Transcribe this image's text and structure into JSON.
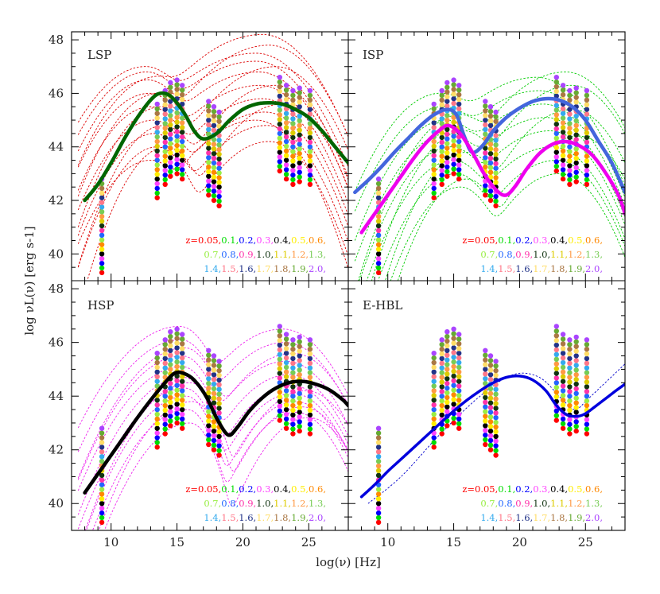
{
  "figure": {
    "xlabel": "log(ν) [Hz]",
    "ylabel": "log νL(ν) [erg s-1]"
  },
  "legend": {
    "rows": [
      [
        "z=0.05,",
        "0.1,",
        "0.2,",
        "0.3,",
        "0.4,",
        "0.5,",
        "0.6,"
      ],
      [
        "0.7,",
        "0.8,",
        "0.9,",
        "1.0,",
        "1.1,",
        "1.2,",
        "1.3,"
      ],
      [
        "1.4,",
        "1.5,",
        "1.6,",
        "1.7,",
        "1.8,",
        "1.9,",
        "2.0,"
      ]
    ],
    "colors": [
      [
        "#ff0000",
        "#00dd00",
        "#0000ff",
        "#ff44ff",
        "#000000",
        "#ffee00",
        "#ff8800"
      ],
      [
        "#99ee44",
        "#2266ff",
        "#ff33aa",
        "#113311",
        "#ddcc00",
        "#ff9944",
        "#77cc55"
      ],
      [
        "#33aaee",
        "#ff7788",
        "#223388",
        "#ffdd66",
        "#aa7744",
        "#66aa33",
        "#aa44ff"
      ]
    ]
  },
  "chart_data": {
    "type": "line",
    "xlim": [
      7,
      28
    ],
    "ylim": [
      39,
      48.3
    ],
    "xticks": [
      10,
      15,
      20,
      25
    ],
    "yticks": [
      40,
      42,
      44,
      46,
      48
    ],
    "sensitivity_bands": {
      "redshift_colors": [
        "#ff0000",
        "#00dd00",
        "#0000ff",
        "#ff44ff",
        "#000000",
        "#ffee00",
        "#ff8800",
        "#99ee44",
        "#2266ff",
        "#ff33aa",
        "#113311",
        "#ddcc00",
        "#ff9944",
        "#77cc55",
        "#33aaee",
        "#ff7788",
        "#223388",
        "#ffdd66",
        "#aa7744",
        "#66aa33",
        "#aa44ff"
      ],
      "bands": [
        {
          "x": 9.3,
          "y_start": 39.3,
          "y_step": 0.175
        },
        {
          "x": 13.5,
          "y_start": 42.1,
          "y_step": 0.175
        },
        {
          "x": 14.1,
          "y_start": 42.6,
          "y_step": 0.175
        },
        {
          "x": 14.5,
          "y_start": 42.9,
          "y_step": 0.175
        },
        {
          "x": 15.0,
          "y_start": 43.0,
          "y_step": 0.175
        },
        {
          "x": 15.4,
          "y_start": 42.8,
          "y_step": 0.175
        },
        {
          "x": 17.4,
          "y_start": 42.2,
          "y_step": 0.175
        },
        {
          "x": 17.8,
          "y_start": 42.0,
          "y_step": 0.175
        },
        {
          "x": 18.2,
          "y_start": 41.8,
          "y_step": 0.175
        },
        {
          "x": 22.8,
          "y_start": 43.1,
          "y_step": 0.175
        },
        {
          "x": 23.3,
          "y_start": 42.8,
          "y_step": 0.175
        },
        {
          "x": 23.8,
          "y_start": 42.6,
          "y_step": 0.175
        },
        {
          "x": 24.3,
          "y_start": 42.7,
          "y_step": 0.175
        },
        {
          "x": 25.1,
          "y_start": 42.6,
          "y_step": 0.175
        }
      ]
    },
    "panels": [
      {
        "label": "LSP",
        "thin_color": "#dd0000",
        "thick": {
          "color": "#006600",
          "width": 4.5,
          "x": [
            8,
            9,
            10,
            11,
            12,
            13,
            13.7,
            14.5,
            15.5,
            16.3,
            17,
            18,
            19,
            20,
            21,
            22,
            23,
            24,
            25,
            26,
            27,
            28
          ],
          "y": [
            42.0,
            42.6,
            43.4,
            44.3,
            45.1,
            45.75,
            46.0,
            45.9,
            45.3,
            44.6,
            44.3,
            44.5,
            45.0,
            45.4,
            45.6,
            45.65,
            45.6,
            45.4,
            45.1,
            44.6,
            44.0,
            43.4
          ]
        },
        "thin": [
          {
            "a": [
              44.0,
              13.5,
              2.0,
              1.55
            ],
            "b": [
              44.2,
              22.0,
              2.6,
              2.05
            ]
          },
          {
            "a": [
              44.5,
              13.3,
              2.1,
              1.6
            ],
            "b": [
              44.8,
              21.8,
              2.8,
              2.1
            ]
          },
          {
            "a": [
              45.0,
              13.2,
              2.2,
              1.65
            ],
            "b": [
              45.3,
              21.7,
              3.0,
              2.15
            ]
          },
          {
            "a": [
              45.5,
              13.0,
              2.2,
              1.7
            ],
            "b": [
              45.8,
              21.5,
              3.2,
              2.2
            ]
          },
          {
            "a": [
              46.0,
              12.9,
              2.3,
              1.75
            ],
            "b": [
              46.3,
              21.3,
              3.4,
              2.25
            ]
          },
          {
            "a": [
              46.5,
              12.8,
              2.3,
              1.8
            ],
            "b": [
              46.8,
              21.2,
              3.5,
              2.3
            ]
          },
          {
            "a": [
              46.8,
              12.7,
              2.4,
              1.85
            ],
            "b": [
              47.2,
              21.0,
              3.6,
              2.35
            ]
          },
          {
            "a": [
              47.0,
              12.6,
              2.5,
              1.9
            ],
            "b": [
              47.5,
              21.0,
              3.7,
              2.4
            ]
          },
          {
            "a": [
              44.8,
              14.0,
              2.0,
              1.6
            ],
            "b": [
              46.3,
              22.5,
              2.8,
              2.1
            ]
          },
          {
            "a": [
              45.5,
              13.8,
              2.1,
              1.65
            ],
            "b": [
              47.0,
              22.5,
              3.0,
              2.2
            ]
          },
          {
            "a": [
              44.0,
              14.2,
              1.9,
              1.5
            ],
            "b": [
              45.6,
              23.0,
              2.6,
              2.0
            ]
          },
          {
            "a": [
              46.0,
              13.6,
              2.2,
              1.7
            ],
            "b": [
              47.8,
              22.0,
              3.2,
              2.3
            ]
          },
          {
            "a": [
              43.5,
              13.0,
              2.2,
              1.6
            ],
            "b": [
              45.0,
              21.0,
              3.0,
              2.1
            ]
          },
          {
            "a": [
              46.6,
              13.4,
              2.3,
              1.8
            ],
            "b": [
              48.2,
              21.5,
              3.5,
              2.35
            ]
          }
        ]
      },
      {
        "label": "ISP",
        "thin_color": "#00cc00",
        "thick": [
          {
            "color": "#4466dd",
            "width": 4.5,
            "x": [
              7.5,
              8.5,
              9.5,
              10.5,
              11.5,
              12.5,
              13.5,
              14.5,
              15.2,
              15.8,
              16.4,
              17.2,
              18,
              19,
              20,
              21,
              22,
              23,
              24,
              25,
              26,
              27,
              28
            ],
            "y": [
              42.3,
              42.75,
              43.25,
              43.8,
              44.3,
              44.8,
              45.2,
              45.4,
              45.2,
              44.4,
              43.8,
              44.05,
              44.6,
              45.1,
              45.45,
              45.7,
              45.8,
              45.75,
              45.5,
              45.0,
              44.2,
              43.4,
              42.3
            ]
          },
          {
            "color": "#ee00ee",
            "width": 4.5,
            "x": [
              8,
              9,
              10,
              11,
              12,
              13,
              14,
              14.6,
              15.4,
              16.3,
              17.3,
              18.3,
              19,
              19.7,
              20.5,
              21.5,
              22.5,
              23.5,
              24.5,
              25.5,
              26.5,
              27.5,
              28
            ],
            "y": [
              40.8,
              41.5,
              42.2,
              42.9,
              43.6,
              44.2,
              44.65,
              44.8,
              44.55,
              43.9,
              43.0,
              42.35,
              42.2,
              42.55,
              43.15,
              43.75,
              44.1,
              44.2,
              44.05,
              43.7,
              43.05,
              42.2,
              41.5
            ]
          }
        ],
        "thin": [
          {
            "a": [
              42.5,
              15.5,
              2.0,
              1.6
            ],
            "b": [
              43.0,
              23.0,
              2.5,
              2.0
            ]
          },
          {
            "a": [
              43.0,
              15.2,
              2.1,
              1.65
            ],
            "b": [
              43.5,
              22.8,
              2.7,
              2.05
            ]
          },
          {
            "a": [
              43.5,
              15.0,
              2.2,
              1.7
            ],
            "b": [
              44.0,
              22.5,
              2.9,
              2.1
            ]
          },
          {
            "a": [
              44.0,
              14.8,
              2.2,
              1.75
            ],
            "b": [
              44.6,
              22.3,
              3.0,
              2.15
            ]
          },
          {
            "a": [
              44.5,
              14.6,
              2.3,
              1.8
            ],
            "b": [
              45.1,
              22.0,
              3.1,
              2.2
            ]
          },
          {
            "a": [
              45.0,
              14.4,
              2.3,
              1.85
            ],
            "b": [
              45.6,
              21.8,
              3.2,
              2.25
            ]
          },
          {
            "a": [
              45.5,
              14.2,
              2.4,
              1.9
            ],
            "b": [
              46.1,
              21.5,
              3.3,
              2.3
            ]
          },
          {
            "a": [
              46.0,
              14.0,
              2.4,
              1.95
            ],
            "b": [
              46.6,
              21.3,
              3.4,
              2.35
            ]
          },
          {
            "a": [
              43.8,
              16.0,
              2.0,
              1.6
            ],
            "b": [
              45.4,
              24.0,
              2.6,
              2.0
            ]
          },
          {
            "a": [
              44.6,
              15.8,
              2.1,
              1.65
            ],
            "b": [
              46.3,
              24.0,
              2.8,
              2.1
            ]
          },
          {
            "a": [
              45.2,
              15.5,
              2.2,
              1.7
            ],
            "b": [
              46.8,
              23.5,
              3.0,
              2.2
            ]
          },
          {
            "a": [
              42.8,
              16.0,
              1.9,
              1.5
            ],
            "b": [
              44.4,
              24.5,
              2.5,
              1.95
            ]
          }
        ]
      },
      {
        "label": "HSP",
        "thin_color": "#ee22ee",
        "thick": {
          "color": "#000000",
          "width": 4.5,
          "x": [
            8,
            9,
            10,
            11,
            12,
            13,
            14,
            14.8,
            15.5,
            16.3,
            17.2,
            18.1,
            18.9,
            19.6,
            20.5,
            21.5,
            22.5,
            23.5,
            24.5,
            25.5,
            26.5,
            27.5,
            28
          ],
          "y": [
            40.4,
            41.1,
            41.8,
            42.5,
            43.2,
            43.85,
            44.45,
            44.85,
            44.85,
            44.6,
            44.0,
            43.1,
            42.55,
            42.85,
            43.45,
            43.95,
            44.3,
            44.5,
            44.55,
            44.45,
            44.25,
            43.9,
            43.65
          ]
        },
        "thin": [
          {
            "a": [
              43.5,
              15.8,
              2.4,
              1.2
            ],
            "b": [
              43.4,
              24.0,
              2.2,
              1.9
            ]
          },
          {
            "a": [
              44.0,
              15.7,
              2.4,
              1.25
            ],
            "b": [
              43.8,
              24.0,
              2.3,
              1.95
            ]
          },
          {
            "a": [
              44.3,
              15.6,
              2.5,
              1.3
            ],
            "b": [
              44.1,
              23.8,
              2.4,
              2.0
            ]
          },
          {
            "a": [
              44.7,
              15.5,
              2.5,
              1.35
            ],
            "b": [
              44.4,
              23.7,
              2.5,
              2.05
            ]
          },
          {
            "a": [
              45.1,
              15.4,
              2.6,
              1.4
            ],
            "b": [
              44.8,
              23.5,
              2.6,
              2.1
            ]
          },
          {
            "a": [
              45.5,
              15.4,
              2.6,
              1.45
            ],
            "b": [
              45.3,
              23.3,
              2.7,
              2.15
            ]
          },
          {
            "a": [
              46.1,
              15.3,
              2.7,
              1.5
            ],
            "b": [
              46.0,
              23.2,
              2.8,
              2.2
            ]
          },
          {
            "a": [
              46.6,
              15.2,
              2.8,
              1.55
            ],
            "b": [
              46.5,
              23.0,
              2.9,
              2.25
            ]
          },
          {
            "a": [
              43.0,
              16.0,
              2.3,
              1.2
            ],
            "b": [
              43.2,
              25.0,
              2.2,
              1.9
            ]
          },
          {
            "a": [
              43.8,
              16.2,
              2.3,
              1.25
            ],
            "b": [
              43.6,
              24.5,
              2.3,
              1.95
            ]
          },
          {
            "a": [
              44.5,
              16.0,
              2.4,
              1.3
            ],
            "b": [
              44.2,
              24.8,
              2.4,
              2.0
            ]
          },
          {
            "a": [
              45.8,
              15.6,
              2.6,
              1.45
            ],
            "b": [
              45.6,
              23.8,
              2.7,
              2.15
            ]
          }
        ]
      },
      {
        "label": "E-HBL",
        "thin_color": "#0000cc",
        "thick": {
          "color": "#0000dd",
          "width": 3.5,
          "x": [
            8,
            9,
            10,
            11,
            12,
            13,
            14,
            15,
            16,
            17,
            18,
            19,
            20,
            21,
            22,
            22.8,
            23.6,
            24.4,
            25,
            25.7,
            26.5,
            27.3,
            28
          ],
          "y": [
            40.25,
            40.7,
            41.2,
            41.65,
            42.1,
            42.55,
            43.0,
            43.45,
            43.85,
            44.2,
            44.5,
            44.7,
            44.75,
            44.6,
            44.2,
            43.65,
            43.3,
            43.25,
            43.35,
            43.6,
            43.9,
            44.2,
            44.45
          ]
        },
        "thin": [
          {
            "line": [
              [
                8.5,
                40.0
              ],
              [
                11,
                41.0
              ],
              [
                14,
                42.6
              ],
              [
                17,
                44.0
              ],
              [
                19.5,
                44.8
              ],
              [
                21.5,
                44.7
              ],
              [
                23.2,
                43.9
              ],
              [
                24.2,
                43.5
              ],
              [
                25.2,
                43.9
              ],
              [
                26.5,
                44.5
              ],
              [
                28,
                45.2
              ]
            ]
          }
        ]
      }
    ]
  }
}
